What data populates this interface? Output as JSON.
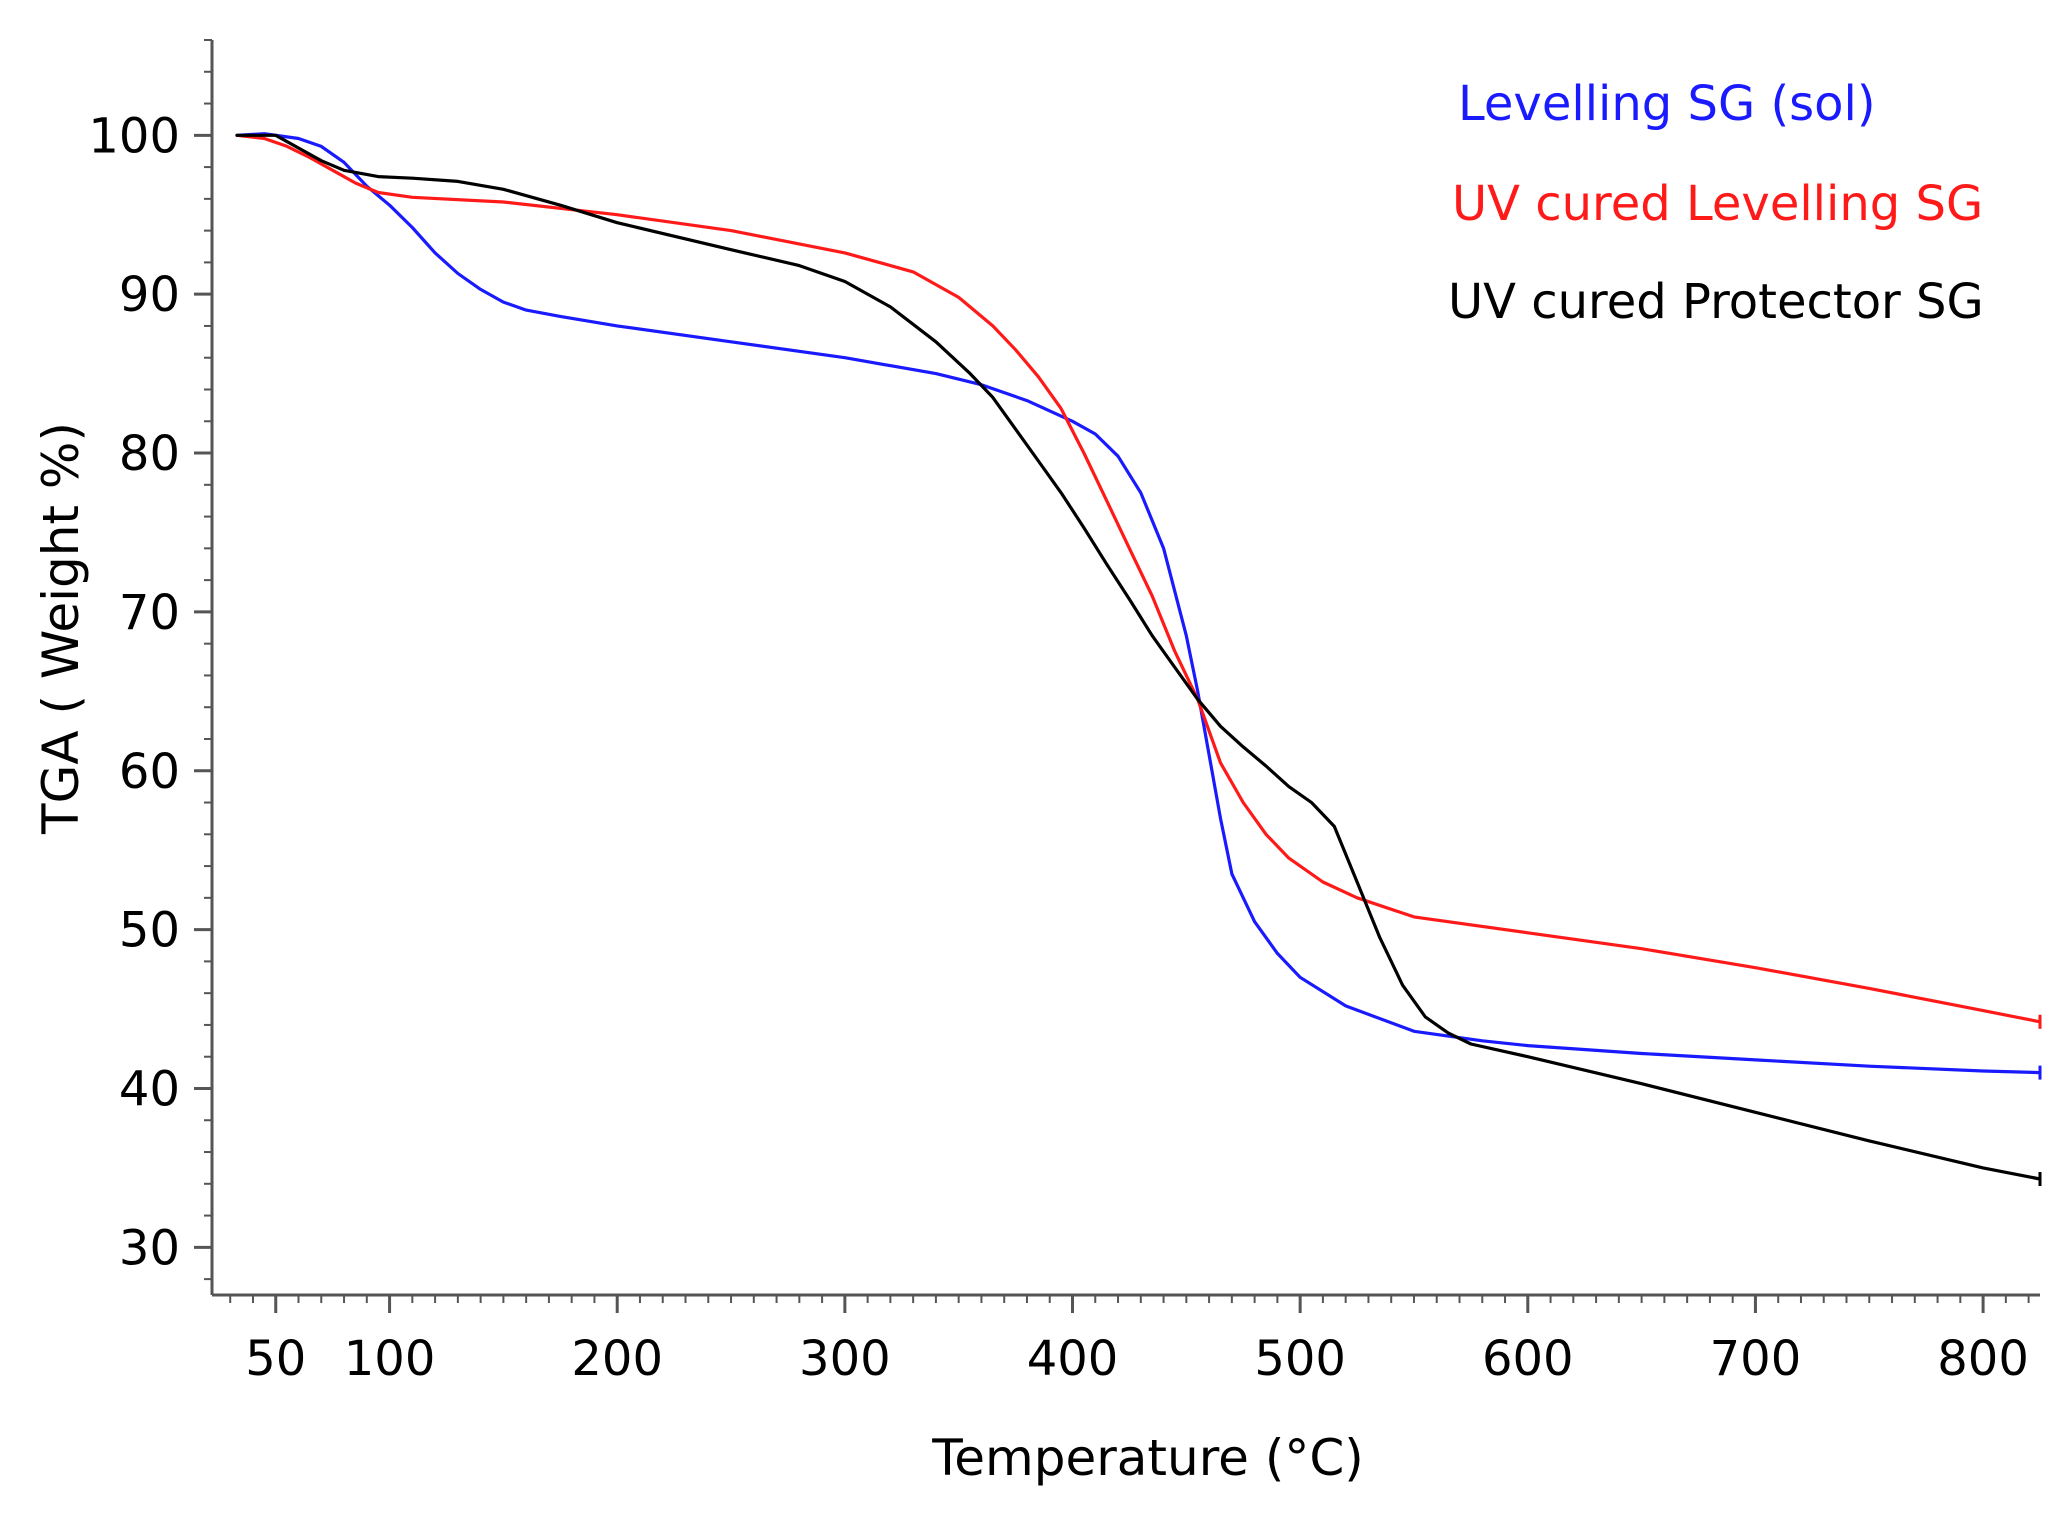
{
  "chart_data": {
    "type": "line",
    "title": "",
    "xlabel": "Temperature (°C)",
    "ylabel": "TGA ( Weight %)",
    "xlim": [
      22,
      825
    ],
    "ylim": [
      27,
      106
    ],
    "x_ticks": [
      50,
      100,
      200,
      300,
      400,
      500,
      600,
      700,
      800
    ],
    "y_ticks": [
      30,
      40,
      50,
      60,
      70,
      80,
      90,
      100
    ],
    "grid": false,
    "legend_position": "top-right",
    "series": [
      {
        "name": "Levelling SG (sol)",
        "color": "#1a1aff",
        "points": [
          [
            33,
            100
          ],
          [
            45,
            100.1
          ],
          [
            60,
            99.8
          ],
          [
            70,
            99.3
          ],
          [
            80,
            98.3
          ],
          [
            90,
            96.8
          ],
          [
            100,
            95.6
          ],
          [
            110,
            94.2
          ],
          [
            120,
            92.6
          ],
          [
            130,
            91.3
          ],
          [
            140,
            90.3
          ],
          [
            150,
            89.5
          ],
          [
            160,
            89
          ],
          [
            175,
            88.6
          ],
          [
            200,
            88
          ],
          [
            250,
            87
          ],
          [
            300,
            86
          ],
          [
            340,
            85
          ],
          [
            360,
            84.3
          ],
          [
            380,
            83.3
          ],
          [
            400,
            82
          ],
          [
            410,
            81.2
          ],
          [
            420,
            79.8
          ],
          [
            430,
            77.5
          ],
          [
            440,
            74
          ],
          [
            450,
            68.5
          ],
          [
            455,
            65
          ],
          [
            460,
            61
          ],
          [
            465,
            57
          ],
          [
            470,
            53.5
          ],
          [
            480,
            50.5
          ],
          [
            490,
            48.5
          ],
          [
            500,
            47
          ],
          [
            520,
            45.2
          ],
          [
            550,
            43.6
          ],
          [
            580,
            43
          ],
          [
            600,
            42.7
          ],
          [
            650,
            42.2
          ],
          [
            700,
            41.8
          ],
          [
            750,
            41.4
          ],
          [
            800,
            41.1
          ],
          [
            825,
            41
          ]
        ]
      },
      {
        "name": "UV cured Levelling SG",
        "color": "#ff1a1a",
        "points": [
          [
            33,
            100
          ],
          [
            45,
            99.8
          ],
          [
            55,
            99.3
          ],
          [
            65,
            98.6
          ],
          [
            75,
            97.8
          ],
          [
            85,
            97
          ],
          [
            95,
            96.4
          ],
          [
            110,
            96.1
          ],
          [
            150,
            95.8
          ],
          [
            200,
            95
          ],
          [
            250,
            94
          ],
          [
            300,
            92.6
          ],
          [
            330,
            91.4
          ],
          [
            350,
            89.8
          ],
          [
            365,
            88
          ],
          [
            375,
            86.5
          ],
          [
            385,
            84.8
          ],
          [
            395,
            82.8
          ],
          [
            405,
            80
          ],
          [
            415,
            77
          ],
          [
            425,
            74
          ],
          [
            435,
            71
          ],
          [
            445,
            67.5
          ],
          [
            455,
            64.5
          ],
          [
            465,
            60.5
          ],
          [
            475,
            58
          ],
          [
            485,
            56
          ],
          [
            495,
            54.5
          ],
          [
            510,
            53
          ],
          [
            525,
            52
          ],
          [
            550,
            50.8
          ],
          [
            600,
            49.8
          ],
          [
            650,
            48.8
          ],
          [
            700,
            47.6
          ],
          [
            750,
            46.3
          ],
          [
            800,
            44.9
          ],
          [
            825,
            44.2
          ]
        ]
      },
      {
        "name": "UV cured Protector SG",
        "color": "#000000",
        "points": [
          [
            33,
            100
          ],
          [
            50,
            100
          ],
          [
            60,
            99.2
          ],
          [
            70,
            98.4
          ],
          [
            80,
            97.8
          ],
          [
            95,
            97.4
          ],
          [
            110,
            97.3
          ],
          [
            130,
            97.1
          ],
          [
            150,
            96.6
          ],
          [
            175,
            95.6
          ],
          [
            200,
            94.5
          ],
          [
            250,
            92.8
          ],
          [
            280,
            91.8
          ],
          [
            300,
            90.8
          ],
          [
            320,
            89.2
          ],
          [
            340,
            87
          ],
          [
            355,
            85
          ],
          [
            365,
            83.5
          ],
          [
            375,
            81.5
          ],
          [
            385,
            79.5
          ],
          [
            395,
            77.5
          ],
          [
            405,
            75.3
          ],
          [
            415,
            73
          ],
          [
            425,
            70.8
          ],
          [
            435,
            68.5
          ],
          [
            445,
            66.5
          ],
          [
            455,
            64.5
          ],
          [
            465,
            62.8
          ],
          [
            475,
            61.5
          ],
          [
            485,
            60.3
          ],
          [
            495,
            59
          ],
          [
            505,
            58
          ],
          [
            515,
            56.5
          ],
          [
            525,
            53
          ],
          [
            535,
            49.5
          ],
          [
            545,
            46.5
          ],
          [
            555,
            44.5
          ],
          [
            565,
            43.5
          ],
          [
            575,
            42.8
          ],
          [
            600,
            42
          ],
          [
            650,
            40.3
          ],
          [
            700,
            38.5
          ],
          [
            750,
            36.7
          ],
          [
            800,
            35
          ],
          [
            825,
            34.3
          ]
        ]
      }
    ]
  }
}
